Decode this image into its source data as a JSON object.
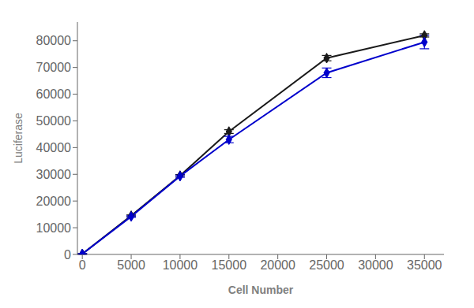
{
  "chart_data": {
    "type": "line",
    "xlabel": "Cell Number",
    "ylabel": "Luciferase",
    "x": [
      0,
      5000,
      10000,
      15000,
      25000,
      35000
    ],
    "series": [
      {
        "color": "#1a1a1a",
        "values": [
          200,
          14500,
          29500,
          46000,
          73500,
          82000
        ],
        "errors": [
          150,
          300,
          400,
          700,
          1000,
          600
        ]
      },
      {
        "color": "#0000cc",
        "values": [
          200,
          14200,
          29300,
          43000,
          68000,
          79500
        ],
        "errors": [
          150,
          300,
          400,
          1200,
          1800,
          2500
        ]
      }
    ],
    "marker": "diamond",
    "xlim": [
      -500,
      37000
    ],
    "ylim": [
      0,
      87000
    ],
    "xticks": [
      0,
      5000,
      10000,
      15000,
      20000,
      25000,
      30000,
      35000
    ],
    "yticks": [
      0,
      10000,
      20000,
      30000,
      40000,
      50000,
      60000,
      70000,
      80000
    ],
    "grid": false
  }
}
